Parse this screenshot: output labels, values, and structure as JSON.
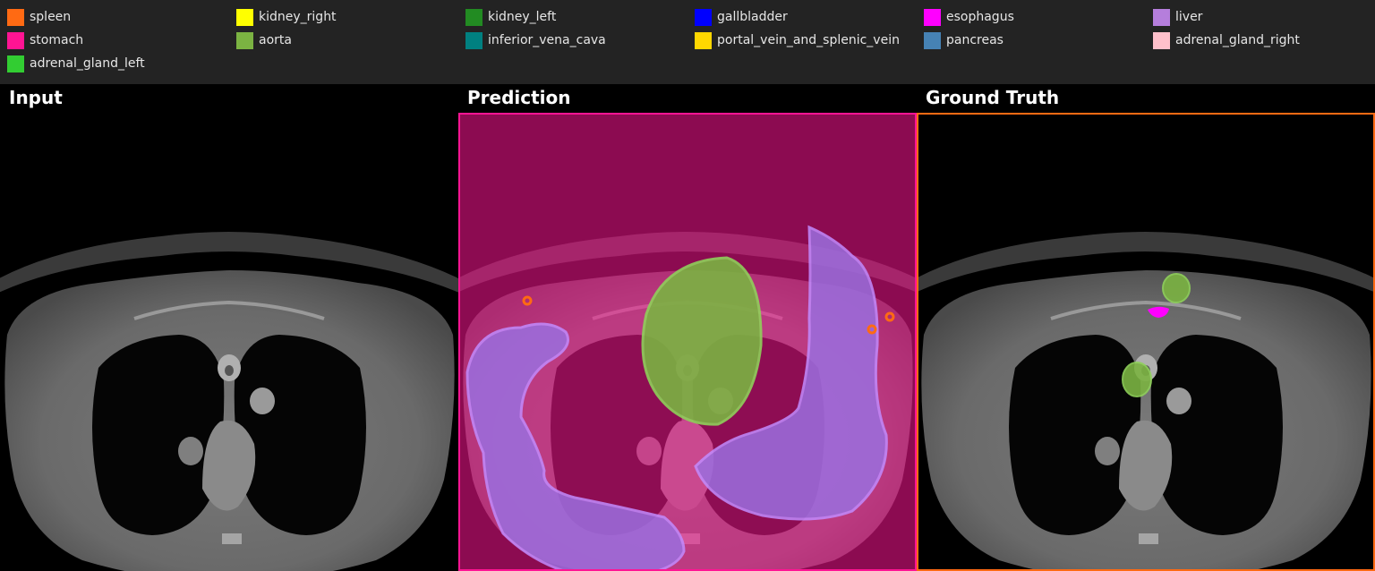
{
  "legend": [
    {
      "label": "spleen",
      "color": "#ff6a13"
    },
    {
      "label": "kidney_right",
      "color": "#ffff00"
    },
    {
      "label": "kidney_left",
      "color": "#228b22"
    },
    {
      "label": "gallbladder",
      "color": "#0000ff"
    },
    {
      "label": "esophagus",
      "color": "#ff00ff"
    },
    {
      "label": "liver",
      "color": "#b57edc"
    },
    {
      "label": "stomach",
      "color": "#ff1493"
    },
    {
      "label": "aorta",
      "color": "#7bb342"
    },
    {
      "label": "inferior_vena_cava",
      "color": "#008080"
    },
    {
      "label": "portal_vein_and_splenic_vein",
      "color": "#ffd700"
    },
    {
      "label": "pancreas",
      "color": "#4682b4"
    },
    {
      "label": "adrenal_gland_right",
      "color": "#ffc0cb"
    },
    {
      "label": "adrenal_gland_left",
      "color": "#32cd32"
    }
  ],
  "panels": {
    "input": {
      "title": "Input"
    },
    "prediction": {
      "title": "Prediction",
      "border_color": "#ff1493"
    },
    "ground_truth": {
      "title": "Ground Truth",
      "border_color": "#ff6a13"
    }
  }
}
